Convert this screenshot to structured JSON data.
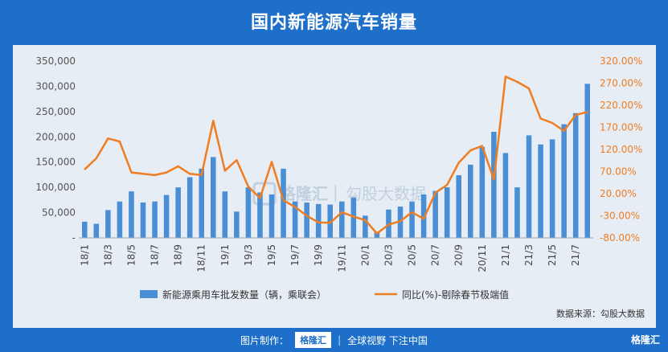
{
  "title": "国内新能源汽车销量",
  "source_note": "数据来源：勾股大数据",
  "footer": {
    "made_by": "图片制作：",
    "brand": "格隆汇",
    "slogan": "全球视野 下注中国"
  },
  "watermark": {
    "brand": "格隆汇",
    "partner": "勾股大数据"
  },
  "corner_logo": "格隆汇",
  "colors": {
    "background": "#1d6fc9",
    "panel": "#e6edf4",
    "bar": "#4a8fd6",
    "line": "#ef7d22",
    "left_axis_text": "#555555",
    "right_axis_text": "#ef7d22"
  },
  "chart_data": {
    "type": "bar",
    "categories": [
      "18/1",
      "18/2",
      "18/3",
      "18/4",
      "18/5",
      "18/6",
      "18/7",
      "18/8",
      "18/9",
      "18/10",
      "18/11",
      "18/12",
      "19/1",
      "19/2",
      "19/3",
      "19/4",
      "19/5",
      "19/6",
      "19/7",
      "19/8",
      "19/9",
      "19/10",
      "19/11",
      "19/12",
      "20/1",
      "20/2",
      "20/3",
      "20/4",
      "20/5",
      "20/6",
      "20/7",
      "20/8",
      "20/9",
      "20/10",
      "20/11",
      "20/12",
      "21/1",
      "21/2",
      "21/3",
      "21/4",
      "21/5",
      "21/6",
      "21/7",
      "21/8"
    ],
    "x_tick_labels": [
      "18/1",
      "18/3",
      "18/5",
      "18/7",
      "18/9",
      "18/11",
      "19/1",
      "19/3",
      "19/5",
      "19/7",
      "19/9",
      "19/11",
      "20/1",
      "20/3",
      "20/5",
      "20/7",
      "20/9",
      "20/11",
      "21/1",
      "21/3",
      "21/5",
      "21/7"
    ],
    "series": [
      {
        "name": "新能源乘用车批发数量（辆，乘联会）",
        "type": "bar",
        "axis": "left",
        "values": [
          32000,
          28000,
          55000,
          72000,
          92000,
          70000,
          72000,
          85000,
          100000,
          120000,
          137000,
          160000,
          92000,
          52000,
          100000,
          90000,
          86000,
          137000,
          72000,
          70000,
          67000,
          66000,
          72000,
          80000,
          44000,
          12000,
          56000,
          62000,
          72000,
          86000,
          93000,
          100000,
          124000,
          145000,
          180000,
          210000,
          168000,
          100000,
          203000,
          185000,
          195000,
          225000,
          247000,
          305000
        ]
      },
      {
        "name": "同比(%)-剔除春节极端值",
        "type": "line",
        "axis": "right",
        "values": [
          75,
          100,
          145,
          138,
          68,
          65,
          62,
          68,
          82,
          65,
          62,
          185,
          72,
          96,
          36,
          10,
          92,
          5,
          -10,
          -30,
          -45,
          -46,
          -22,
          -32,
          -40,
          -70,
          -50,
          -42,
          -22,
          -37,
          22,
          40,
          90,
          118,
          128,
          52,
          285,
          273,
          258,
          190,
          180,
          162,
          198,
          205
        ]
      }
    ],
    "y_left": {
      "min": 0,
      "max": 350000,
      "ticks": [
        "-",
        "50,000",
        "100,000",
        "150,000",
        "200,000",
        "250,000",
        "300,000",
        "350,000"
      ]
    },
    "y_right": {
      "min": -80,
      "max": 320,
      "ticks": [
        "-80.00%",
        "-30.00%",
        "20.00%",
        "70.00%",
        "120.00%",
        "170.00%",
        "220.00%",
        "270.00%",
        "320.00%"
      ]
    },
    "grid": false,
    "legend_position": "bottom"
  }
}
